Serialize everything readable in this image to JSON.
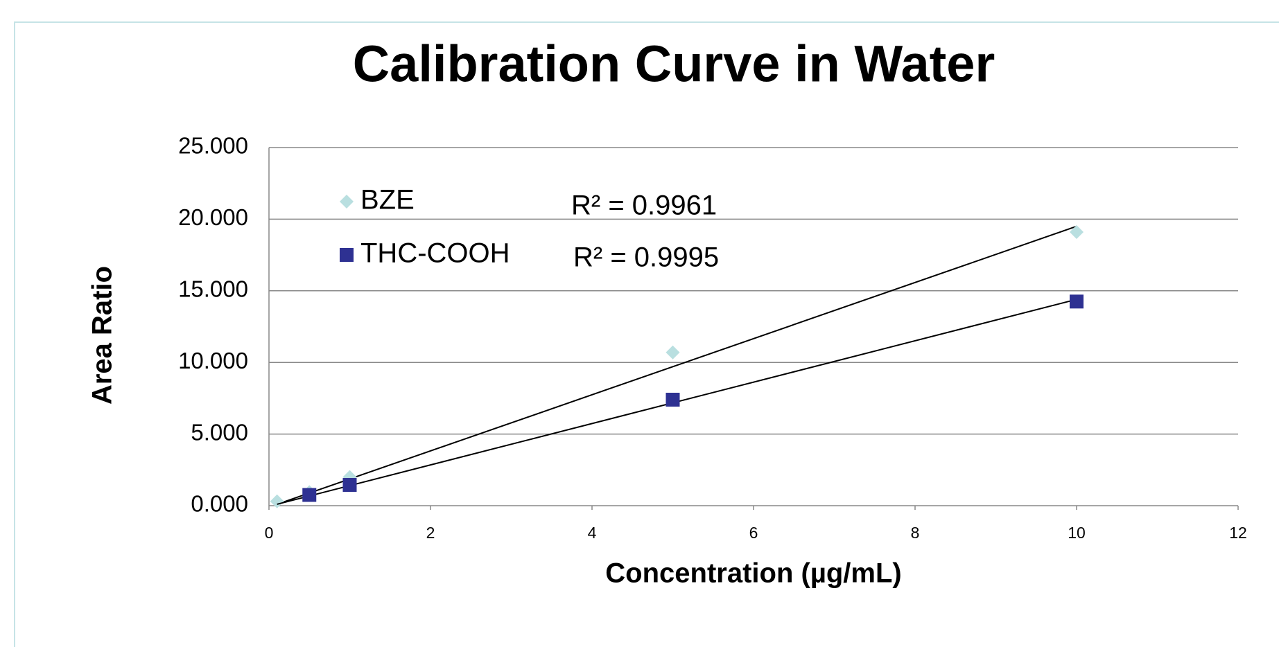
{
  "chart_data": {
    "type": "scatter",
    "title": "Calibration Curve in Water",
    "x_label": "Concentration (µg/mL)",
    "y_label": "Area Ratio",
    "xlim": [
      0,
      12
    ],
    "xticks": [
      0,
      2,
      4,
      6,
      8,
      10,
      12
    ],
    "ylim": [
      0,
      25
    ],
    "yticks": [
      {
        "value": 0,
        "label": "0.000"
      },
      {
        "value": 5,
        "label": "5.000"
      },
      {
        "value": 10,
        "label": "10.000"
      },
      {
        "value": 15,
        "label": "15.000"
      },
      {
        "value": 20,
        "label": "20.000"
      },
      {
        "value": 25,
        "label": "25.000"
      }
    ],
    "grid": true,
    "legend": "upper left",
    "series": [
      {
        "name": "BZE",
        "color": "#b9dfe0",
        "marker": "diamond",
        "x": [
          0.1,
          0.5,
          1,
          5,
          10
        ],
        "values": [
          0.3,
          0.95,
          2.0,
          10.7,
          19.1
        ],
        "trendline": {
          "x": [
            0.1,
            10
          ],
          "values": [
            0.1,
            19.5
          ],
          "color": "#000000",
          "label": "R² = 0.9961"
        }
      },
      {
        "name": "THC-COOH",
        "color": "#2e3192",
        "marker": "square",
        "x": [
          0.5,
          1,
          5,
          10
        ],
        "values": [
          0.75,
          1.45,
          7.4,
          14.25
        ],
        "trendline": {
          "x": [
            0.1,
            10
          ],
          "values": [
            0.1,
            14.4
          ],
          "color": "#000000",
          "label": "R² = 0.9995"
        }
      }
    ]
  }
}
